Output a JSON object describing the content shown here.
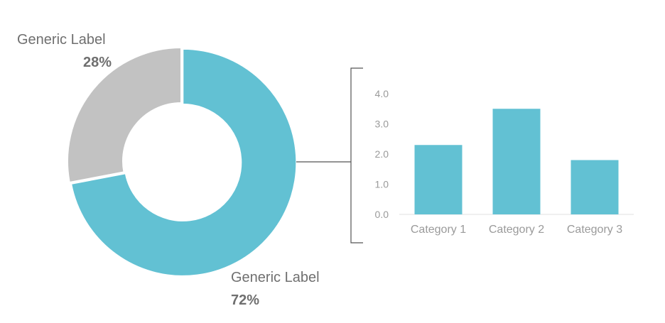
{
  "chart_data": [
    {
      "type": "pie",
      "style": "donut",
      "slices": [
        {
          "label": "Generic Label",
          "value_label": "72%",
          "value": 72,
          "color": "#62c1d3"
        },
        {
          "label": "Generic Label",
          "value_label": "28%",
          "value": 28,
          "color": "#c2c2c2"
        }
      ],
      "exploded_slice": 0
    },
    {
      "type": "bar",
      "categories": [
        "Category 1",
        "Category 2",
        "Category 3"
      ],
      "values": [
        2.3,
        3.5,
        1.8
      ],
      "ylim": [
        0,
        4
      ],
      "yticks": [
        "0.0",
        "1.0",
        "2.0",
        "3.0",
        "4.0"
      ],
      "grid": false,
      "color": "#62c1d3"
    }
  ],
  "colors": {
    "accent": "#62c1d3",
    "secondary": "#c2c2c2",
    "connector": "#555555",
    "label_text": "#6f6f6f",
    "axis_text": "#9a9a9a"
  }
}
